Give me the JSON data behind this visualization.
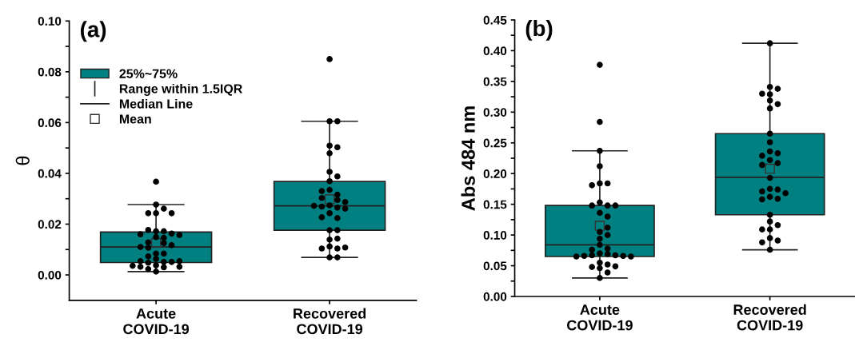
{
  "chart_data": [
    {
      "type": "box",
      "title": "(a)",
      "ylabel": "θ",
      "categories": [
        "Acute\nCOVID-19",
        "Recovered\nCOVID-19"
      ],
      "ylim": [
        -0.01,
        0.1
      ],
      "yticks": [
        {
          "value": 0.0,
          "label": "0.00"
        },
        {
          "value": 0.01,
          "label": null
        },
        {
          "value": 0.02,
          "label": "0.02"
        },
        {
          "value": 0.03,
          "label": null
        },
        {
          "value": 0.04,
          "label": "0.04"
        },
        {
          "value": 0.05,
          "label": null
        },
        {
          "value": 0.06,
          "label": "0.06"
        },
        {
          "value": 0.07,
          "label": null
        },
        {
          "value": 0.08,
          "label": "0.08"
        },
        {
          "value": 0.09,
          "label": null
        },
        {
          "value": 0.1,
          "label": "0.10"
        }
      ],
      "legend": "top left",
      "annotations": [
        "Range within 1.5IQR",
        "Median Line",
        "Mean"
      ],
      "series": [
        {
          "name": "25%~75%",
          "color": "#008080",
          "boxes": [
            {
              "low": 0.0013,
              "q1": 0.0049,
              "median": 0.011,
              "q3": 0.0169,
              "high": 0.0277,
              "mean": 0.0126
            },
            {
              "low": 0.0069,
              "q1": 0.0176,
              "median": 0.0272,
              "q3": 0.0368,
              "high": 0.0605,
              "mean": 0.0298
            }
          ]
        },
        {
          "type": "scatter",
          "color": "#000000",
          "marker": "circle",
          "x": [
            "Acute\nCOVID-19",
            "Acute\nCOVID-19",
            "Acute\nCOVID-19",
            "Acute\nCOVID-19",
            "Acute\nCOVID-19",
            "Acute\nCOVID-19",
            "Acute\nCOVID-19",
            "Acute\nCOVID-19",
            "Acute\nCOVID-19",
            "Acute\nCOVID-19",
            "Acute\nCOVID-19",
            "Acute\nCOVID-19",
            "Acute\nCOVID-19",
            "Acute\nCOVID-19",
            "Acute\nCOVID-19",
            "Acute\nCOVID-19",
            "Acute\nCOVID-19",
            "Acute\nCOVID-19",
            "Acute\nCOVID-19",
            "Acute\nCOVID-19",
            "Acute\nCOVID-19",
            "Acute\nCOVID-19",
            "Acute\nCOVID-19",
            "Acute\nCOVID-19",
            "Acute\nCOVID-19",
            "Acute\nCOVID-19",
            "Acute\nCOVID-19",
            "Acute\nCOVID-19",
            "Acute\nCOVID-19",
            "Acute\nCOVID-19",
            "Acute\nCOVID-19",
            "Acute\nCOVID-19",
            "Acute\nCOVID-19",
            "Acute\nCOVID-19",
            "Acute\nCOVID-19",
            "Recovered\nCOVID-19",
            "Recovered\nCOVID-19",
            "Recovered\nCOVID-19",
            "Recovered\nCOVID-19",
            "Recovered\nCOVID-19",
            "Recovered\nCOVID-19",
            "Recovered\nCOVID-19",
            "Recovered\nCOVID-19",
            "Recovered\nCOVID-19",
            "Recovered\nCOVID-19",
            "Recovered\nCOVID-19",
            "Recovered\nCOVID-19",
            "Recovered\nCOVID-19",
            "Recovered\nCOVID-19",
            "Recovered\nCOVID-19",
            "Recovered\nCOVID-19",
            "Recovered\nCOVID-19",
            "Recovered\nCOVID-19",
            "Recovered\nCOVID-19",
            "Recovered\nCOVID-19",
            "Recovered\nCOVID-19",
            "Recovered\nCOVID-19",
            "Recovered\nCOVID-19",
            "Recovered\nCOVID-19",
            "Recovered\nCOVID-19",
            "Recovered\nCOVID-19",
            "Recovered\nCOVID-19",
            "Recovered\nCOVID-19",
            "Recovered\nCOVID-19",
            "Recovered\nCOVID-19",
            "Recovered\nCOVID-19",
            "Recovered\nCOVID-19",
            "Recovered\nCOVID-19"
          ],
          "values": [
            0.0367,
            0.0277,
            0.0261,
            0.0243,
            0.0243,
            0.0243,
            0.0172,
            0.0172,
            0.0177,
            0.0163,
            0.016,
            0.0157,
            0.0149,
            0.0146,
            0.0125,
            0.0128,
            0.0117,
            0.011,
            0.0107,
            0.0084,
            0.0084,
            0.0073,
            0.0063,
            0.0051,
            0.0048,
            0.0051,
            0.0054,
            0.0054,
            0.0038,
            0.0036,
            0.0032,
            0.0032,
            0.003,
            0.0023,
            0.0013,
            0.085,
            0.0605,
            0.0605,
            0.0509,
            0.0503,
            0.0479,
            0.0406,
            0.0388,
            0.0369,
            0.0335,
            0.0316,
            0.033,
            0.0295,
            0.0303,
            0.0287,
            0.0274,
            0.0265,
            0.0269,
            0.0261,
            0.0272,
            0.0243,
            0.0224,
            0.0227,
            0.0176,
            0.0176,
            0.0139,
            0.0143,
            0.0112,
            0.0104,
            0.0104,
            0.0108,
            0.0069,
            0.0069
          ]
        }
      ]
    },
    {
      "type": "box",
      "title": "(b)",
      "ylabel": "Abs 484 nm",
      "categories": [
        "Acute\nCOVID-19",
        "Recovered\nCOVID-19"
      ],
      "ylim": [
        0,
        0.45
      ],
      "yticks": [
        {
          "value": 0.0,
          "label": "0.00"
        },
        {
          "value": 0.025,
          "label": null
        },
        {
          "value": 0.05,
          "label": "0.05"
        },
        {
          "value": 0.075,
          "label": null
        },
        {
          "value": 0.1,
          "label": "0.10"
        },
        {
          "value": 0.125,
          "label": null
        },
        {
          "value": 0.15,
          "label": "0.15"
        },
        {
          "value": 0.175,
          "label": null
        },
        {
          "value": 0.2,
          "label": "0.20"
        },
        {
          "value": 0.225,
          "label": null
        },
        {
          "value": 0.25,
          "label": "0.25"
        },
        {
          "value": 0.275,
          "label": null
        },
        {
          "value": 0.3,
          "label": "0.30"
        },
        {
          "value": 0.325,
          "label": null
        },
        {
          "value": 0.35,
          "label": "0.35"
        },
        {
          "value": 0.375,
          "label": null
        },
        {
          "value": 0.4,
          "label": "0.40"
        },
        {
          "value": 0.425,
          "label": null
        },
        {
          "value": 0.45,
          "label": "0.45"
        }
      ],
      "series": [
        {
          "color": "#008080",
          "boxes": [
            {
              "low": 0.03,
              "q1": 0.065,
              "median": 0.084,
              "q3": 0.148,
              "high": 0.237,
              "mean": 0.115
            },
            {
              "low": 0.076,
              "q1": 0.133,
              "median": 0.194,
              "q3": 0.265,
              "high": 0.412,
              "mean": 0.208
            }
          ]
        },
        {
          "type": "scatter",
          "color": "#000000",
          "marker": "circle",
          "x": [
            "Acute\nCOVID-19",
            "Acute\nCOVID-19",
            "Acute\nCOVID-19",
            "Acute\nCOVID-19",
            "Acute\nCOVID-19",
            "Acute\nCOVID-19",
            "Acute\nCOVID-19",
            "Acute\nCOVID-19",
            "Acute\nCOVID-19",
            "Acute\nCOVID-19",
            "Acute\nCOVID-19",
            "Acute\nCOVID-19",
            "Acute\nCOVID-19",
            "Acute\nCOVID-19",
            "Acute\nCOVID-19",
            "Acute\nCOVID-19",
            "Acute\nCOVID-19",
            "Acute\nCOVID-19",
            "Acute\nCOVID-19",
            "Acute\nCOVID-19",
            "Acute\nCOVID-19",
            "Acute\nCOVID-19",
            "Acute\nCOVID-19",
            "Acute\nCOVID-19",
            "Acute\nCOVID-19",
            "Acute\nCOVID-19",
            "Acute\nCOVID-19",
            "Acute\nCOVID-19",
            "Acute\nCOVID-19",
            "Acute\nCOVID-19",
            "Acute\nCOVID-19",
            "Acute\nCOVID-19",
            "Acute\nCOVID-19",
            "Acute\nCOVID-19",
            "Acute\nCOVID-19",
            "Recovered\nCOVID-19",
            "Recovered\nCOVID-19",
            "Recovered\nCOVID-19",
            "Recovered\nCOVID-19",
            "Recovered\nCOVID-19",
            "Recovered\nCOVID-19",
            "Recovered\nCOVID-19",
            "Recovered\nCOVID-19",
            "Recovered\nCOVID-19",
            "Recovered\nCOVID-19",
            "Recovered\nCOVID-19",
            "Recovered\nCOVID-19",
            "Recovered\nCOVID-19",
            "Recovered\nCOVID-19",
            "Recovered\nCOVID-19",
            "Recovered\nCOVID-19",
            "Recovered\nCOVID-19",
            "Recovered\nCOVID-19",
            "Recovered\nCOVID-19",
            "Recovered\nCOVID-19",
            "Recovered\nCOVID-19",
            "Recovered\nCOVID-19",
            "Recovered\nCOVID-19",
            "Recovered\nCOVID-19",
            "Recovered\nCOVID-19",
            "Recovered\nCOVID-19",
            "Recovered\nCOVID-19",
            "Recovered\nCOVID-19",
            "Recovered\nCOVID-19",
            "Recovered\nCOVID-19",
            "Recovered\nCOVID-19",
            "Recovered\nCOVID-19",
            "Recovered\nCOVID-19"
          ],
          "values": [
            0.377,
            0.284,
            0.237,
            0.212,
            0.184,
            0.184,
            0.181,
            0.153,
            0.148,
            0.148,
            0.148,
            0.136,
            0.13,
            0.112,
            0.105,
            0.1,
            0.094,
            0.084,
            0.078,
            0.076,
            0.07,
            0.069,
            0.067,
            0.067,
            0.066,
            0.066,
            0.065,
            0.065,
            0.055,
            0.052,
            0.048,
            0.046,
            0.049,
            0.039,
            0.03,
            0.412,
            0.341,
            0.338,
            0.329,
            0.33,
            0.319,
            0.313,
            0.306,
            0.265,
            0.251,
            0.236,
            0.233,
            0.229,
            0.222,
            0.217,
            0.214,
            0.193,
            0.175,
            0.174,
            0.171,
            0.168,
            0.162,
            0.159,
            0.158,
            0.133,
            0.122,
            0.116,
            0.109,
            0.109,
            0.095,
            0.091,
            0.088,
            0.076
          ]
        }
      ]
    }
  ]
}
